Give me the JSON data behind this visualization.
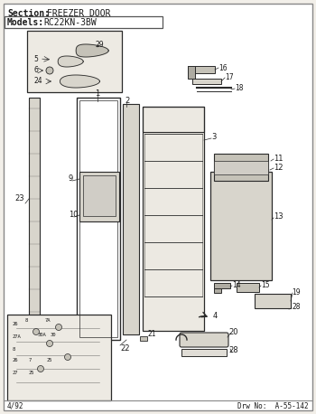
{
  "section_label": "Section:  FREEZER DOOR",
  "models_label": "Models:  RC22KN-3BW",
  "footer_left": "4/92",
  "footer_right": "Drw No:  A-55-142",
  "bg_color": "#f2efe9",
  "border_color": "#444444",
  "text_color": "#1a1a1a",
  "line_color": "#2a2a2a",
  "fill_light": "#d8d5cc",
  "fill_mid": "#c5c2b8",
  "fill_dark": "#aeaba2",
  "title_font_size": 7.5,
  "annotation_font_size": 6.0
}
